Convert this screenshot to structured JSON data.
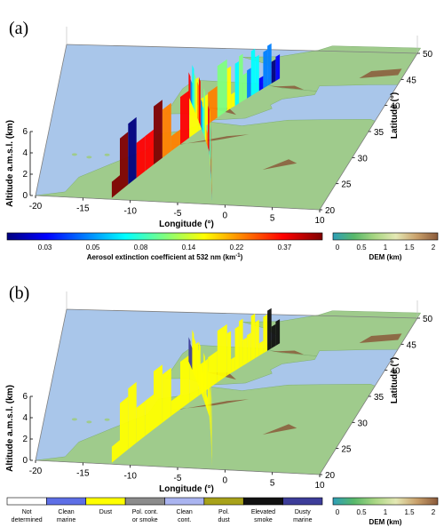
{
  "colors": {
    "sea": "#a9c6ea",
    "land": "#9fcb8c",
    "relief": "#8a5a3a",
    "frame": "#7f7f7f"
  },
  "chart_data": [
    {
      "type": "3d-curtain",
      "panel": "(a)",
      "xlabel": "Longitude (°)",
      "ylabel": "Latitude (°)",
      "zlabel": "Altitude a.m.s.l. (km)",
      "xticks": [
        "-20",
        "-15",
        "-10",
        "-5",
        "0",
        "5",
        "10"
      ],
      "yticks": [
        "20",
        "25",
        "30",
        "35",
        "40",
        "45",
        "50"
      ],
      "zticks": [
        "0",
        "2",
        "4",
        "6"
      ],
      "xlim": [
        -20,
        10
      ],
      "ylim": [
        20,
        50
      ],
      "zlim": [
        0,
        6
      ],
      "colorbar": {
        "label_main": "Aerosol extinction coefficient at 532 nm (km",
        "label_sup": "-1",
        "label_tail": ")",
        "ticks": [
          "0.03",
          "0.05",
          "0.08",
          "0.14",
          "0.22",
          "0.37"
        ],
        "colors": [
          "#00007f",
          "#0000ff",
          "#007fff",
          "#00ffff",
          "#7fff7f",
          "#ffff00",
          "#ff7f00",
          "#ff0000",
          "#7f0000"
        ]
      },
      "dem_colorbar": {
        "label": "DEM (km)",
        "ticks": [
          "0",
          "0.5",
          "1",
          "1.5",
          "2"
        ],
        "colors": [
          "#2e9fb8",
          "#58b86a",
          "#a9d683",
          "#e4e8b4",
          "#c9a06b",
          "#8a5a3a"
        ]
      }
    },
    {
      "type": "3d-curtain",
      "panel": "(b)",
      "xlabel": "Longitude (°)",
      "ylabel": "Latitude (°)",
      "zlabel": "Altitude a.m.s.l. (km)",
      "xticks": [
        "-20",
        "-15",
        "-10",
        "-5",
        "0",
        "5",
        "10"
      ],
      "yticks": [
        "20",
        "25",
        "30",
        "35",
        "40",
        "45",
        "50"
      ],
      "zticks": [
        "0",
        "2",
        "4",
        "6"
      ],
      "xlim": [
        -20,
        10
      ],
      "ylim": [
        20,
        50
      ],
      "zlim": [
        0,
        6
      ],
      "classes": [
        {
          "lines": [
            "Not",
            "determined"
          ],
          "color": "#ffffff"
        },
        {
          "lines": [
            "Clean",
            "marine"
          ],
          "color": "#5e6fe6"
        },
        {
          "lines": [
            "Dust"
          ],
          "color": "#ffff00"
        },
        {
          "lines": [
            "Pol. cont.",
            "or smoke"
          ],
          "color": "#8c8c8c"
        },
        {
          "lines": [
            "Clean",
            "cont."
          ],
          "color": "#aab4f0"
        },
        {
          "lines": [
            "Pol.",
            "dust"
          ],
          "color": "#a8a21a"
        },
        {
          "lines": [
            "Elevated",
            "smoke"
          ],
          "color": "#111111"
        },
        {
          "lines": [
            "Dusty",
            "marine"
          ],
          "color": "#3d3d9a"
        }
      ],
      "dem_colorbar": {
        "label": "DEM (km)",
        "ticks": [
          "0",
          "0.5",
          "1",
          "1.5",
          "2"
        ],
        "colors": [
          "#2e9fb8",
          "#58b86a",
          "#a9d683",
          "#e4e8b4",
          "#c9a06b",
          "#8a5a3a"
        ]
      }
    }
  ]
}
